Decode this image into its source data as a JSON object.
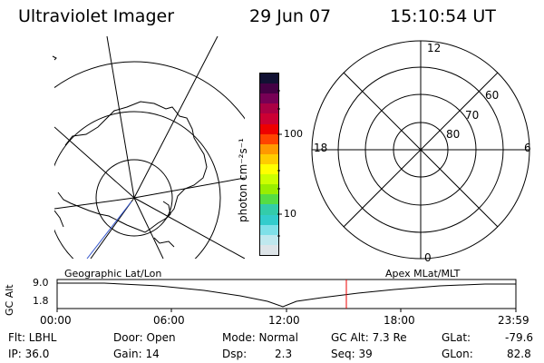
{
  "header": {
    "instrument": "Ultraviolet Imager",
    "date": "29 Jun 07",
    "time": "15:10:54 UT"
  },
  "colorbar": {
    "unit_label": "photon cm⁻²s⁻¹",
    "ticks": [
      "100",
      "10"
    ],
    "colors": [
      "#dde4e8",
      "#bfe8ee",
      "#7fe0e8",
      "#33cccc",
      "#33ccaa",
      "#55dd44",
      "#99ee00",
      "#ccff00",
      "#ffff00",
      "#ffcc00",
      "#ff9900",
      "#ff4400",
      "#ee0000",
      "#cc0033",
      "#aa0044",
      "#770055",
      "#440044",
      "#111133"
    ]
  },
  "left_map": {
    "coord_label": "Geographic Lat/Lon"
  },
  "right_polar": {
    "coord_label": "Apex MLat/MLT",
    "mlt_labels": [
      "12",
      "18",
      "6",
      "0"
    ],
    "lat_labels": [
      "60",
      "70",
      "80"
    ]
  },
  "altitude_plot": {
    "ylabel": "GC Alt",
    "yticks": [
      "9.0",
      "1.8"
    ],
    "xticks": [
      "00:00",
      "06:00",
      "12:00",
      "18:00",
      "23:59"
    ],
    "marker_color": "#ee0000"
  },
  "info": {
    "filter": "Flt: LBHL",
    "ip": "IP: 36.0",
    "door": "Door: Open",
    "gain": "Gain: 14",
    "mode": "Mode: Normal",
    "dsp_label": "Dsp:",
    "dsp_value": "2.3",
    "gc_alt": "GC Alt: 7.3 Re",
    "seq": "Seq: 39",
    "glat_label": "GLat:",
    "glat_value": "-79.6",
    "glon_label": "GLon:",
    "glon_value": "82.8"
  }
}
